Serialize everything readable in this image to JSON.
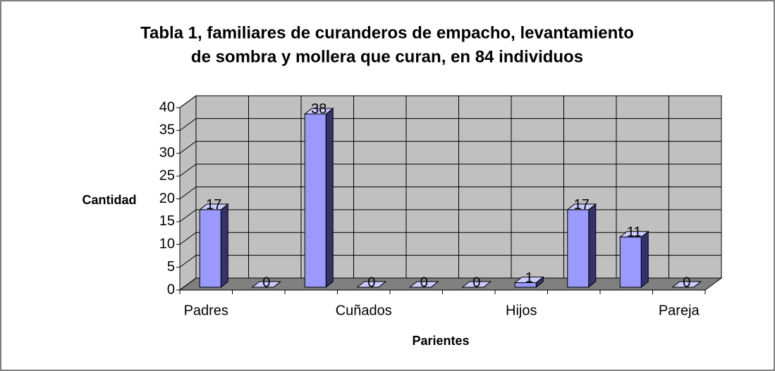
{
  "chart_data": {
    "type": "bar",
    "title": [
      "Tabla 1, familiares de curanderos de empacho, levantamiento",
      "de sombra y mollera que curan, en 84 individuos"
    ],
    "xlabel": "Parientes",
    "ylabel": "Cantidad",
    "categories": [
      "Padres",
      null,
      null,
      "Cuñados",
      null,
      null,
      "Hijos",
      null,
      null,
      "Pareja"
    ],
    "values": [
      17,
      0,
      38,
      0,
      0,
      0,
      1,
      17,
      11,
      0
    ],
    "color": "#9999ff",
    "ylim": [
      0,
      40
    ],
    "yticks": [
      0,
      5,
      10,
      15,
      20,
      25,
      30,
      35,
      40
    ],
    "grid": true
  }
}
